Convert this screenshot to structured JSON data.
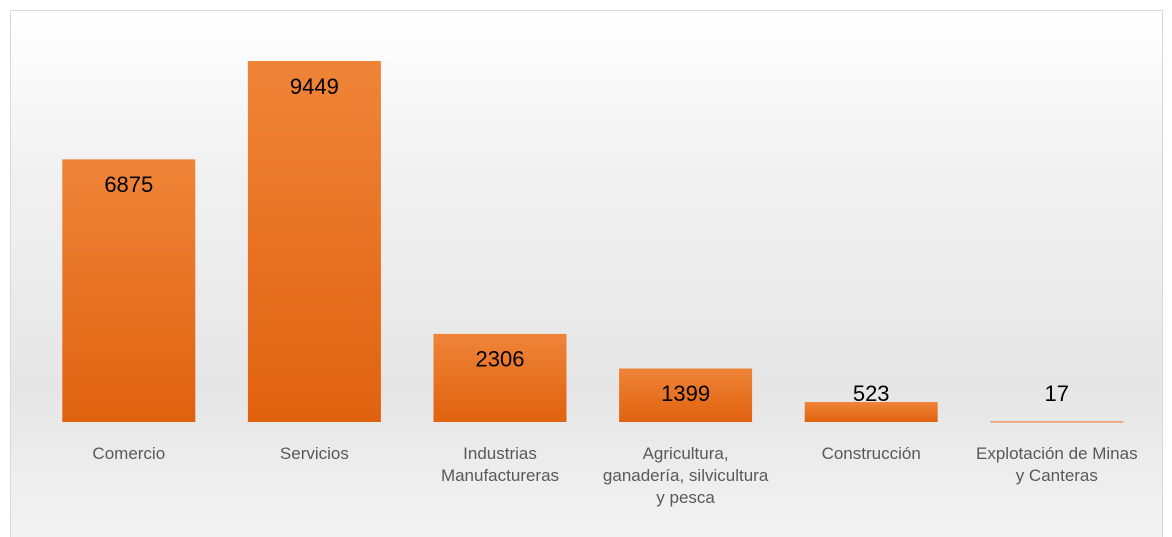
{
  "chart_data": {
    "type": "bar",
    "categories": [
      "Comercio",
      "Servicios",
      "Industrias Manufactureras",
      "Agricultura, ganadería, silvicultura y pesca",
      "Construcción",
      "Explotación de Minas y Canteras"
    ],
    "values": [
      6875,
      9449,
      2306,
      1399,
      523,
      17
    ],
    "color": "#e8701f"
  }
}
